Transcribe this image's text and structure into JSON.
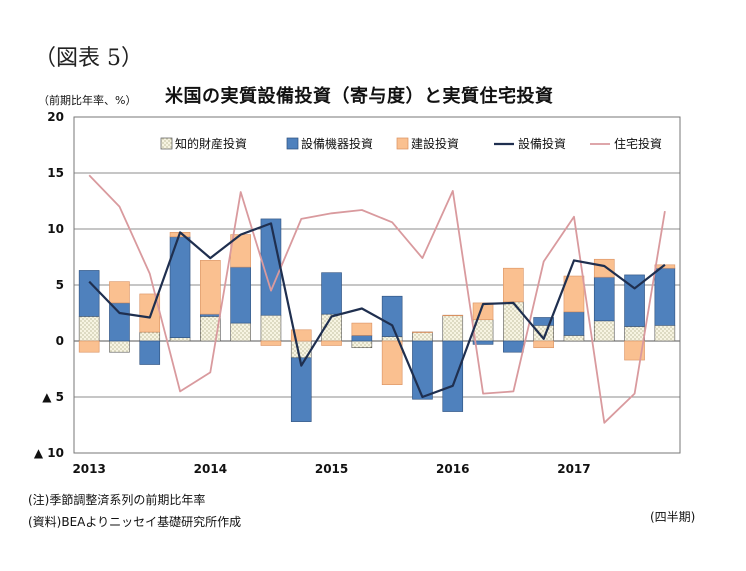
{
  "figure_label": "（図表 5）",
  "unit_label": "（前期比年率、%）",
  "chart_title": "米国の実質設備投資（寄与度）と実質住宅投資",
  "notes": {
    "note1": "(注)季節調整済系列の前期比年率",
    "source": "(資料)BEAよりニッセイ基礎研究所作成",
    "period_label": "(四半期)"
  },
  "colors": {
    "ip": "#f4f1dc",
    "equipment": "#4f81bd",
    "structures": "#fac090",
    "total": "#1f2f4f",
    "residential": "#d99a9e",
    "grid": "#8c8c8c"
  },
  "chart_data": {
    "type": "bar",
    "stacked": true,
    "x_labels": [
      "2013",
      "2014",
      "2015",
      "2016",
      "2017"
    ],
    "quarters": [
      "2013Q1",
      "2013Q2",
      "2013Q3",
      "2013Q4",
      "2014Q1",
      "2014Q2",
      "2014Q3",
      "2014Q4",
      "2015Q1",
      "2015Q2",
      "2015Q3",
      "2015Q4",
      "2016Q1",
      "2016Q2",
      "2016Q3",
      "2016Q4",
      "2017Q1",
      "2017Q2",
      "2017Q3",
      "2017Q4"
    ],
    "ylim": [
      -10,
      20
    ],
    "yticks": [
      {
        "value": 20,
        "label": "20"
      },
      {
        "value": 15,
        "label": "15"
      },
      {
        "value": 10,
        "label": "10"
      },
      {
        "value": 5,
        "label": "5"
      },
      {
        "value": 0,
        "label": "0"
      },
      {
        "value": -5,
        "label": "▲ 5"
      },
      {
        "value": -10,
        "label": "▲ 10"
      }
    ],
    "grid": true,
    "legend_position": "top-right",
    "bar_series": [
      {
        "key": "ip",
        "name": "知的財産投資",
        "values": [
          2.2,
          -1.0,
          0.8,
          0.3,
          2.2,
          1.6,
          2.3,
          -1.5,
          2.4,
          -0.6,
          0.4,
          0.8,
          2.3,
          1.9,
          3.5,
          1.4,
          0.5,
          1.8,
          1.3,
          1.4
        ]
      },
      {
        "key": "equipment",
        "name": "設備機器投資",
        "values": [
          4.1,
          3.4,
          -2.1,
          9.0,
          0.2,
          5.0,
          8.6,
          -5.7,
          3.7,
          0.5,
          3.6,
          -5.2,
          -6.3,
          -0.3,
          -1.0,
          0.7,
          2.1,
          3.9,
          4.6,
          5.1
        ]
      },
      {
        "key": "structures",
        "name": "建設投資",
        "values": [
          -1.0,
          1.9,
          3.4,
          0.4,
          4.8,
          2.9,
          -0.4,
          1.0,
          -0.4,
          1.1,
          -3.9,
          0.0,
          0.0,
          1.5,
          3.0,
          -0.6,
          3.2,
          1.6,
          -1.7,
          0.3
        ]
      }
    ],
    "line_series": [
      {
        "key": "total",
        "name": "設備投資",
        "values": [
          5.3,
          2.5,
          2.1,
          9.7,
          7.4,
          9.5,
          10.5,
          -2.2,
          2.2,
          2.9,
          1.4,
          -5.0,
          -4.0,
          3.3,
          3.4,
          0.2,
          7.2,
          6.7,
          4.7,
          6.8
        ]
      },
      {
        "key": "residential",
        "name": "住宅投資",
        "values": [
          14.8,
          12.0,
          6.0,
          -4.5,
          -2.8,
          13.3,
          4.5,
          10.9,
          11.4,
          11.7,
          10.6,
          7.4,
          13.4,
          -4.7,
          -4.5,
          7.1,
          11.1,
          -7.3,
          -4.7,
          11.6
        ]
      }
    ],
    "legend_order": [
      "ip",
      "equipment",
      "structures",
      "total",
      "residential"
    ]
  }
}
